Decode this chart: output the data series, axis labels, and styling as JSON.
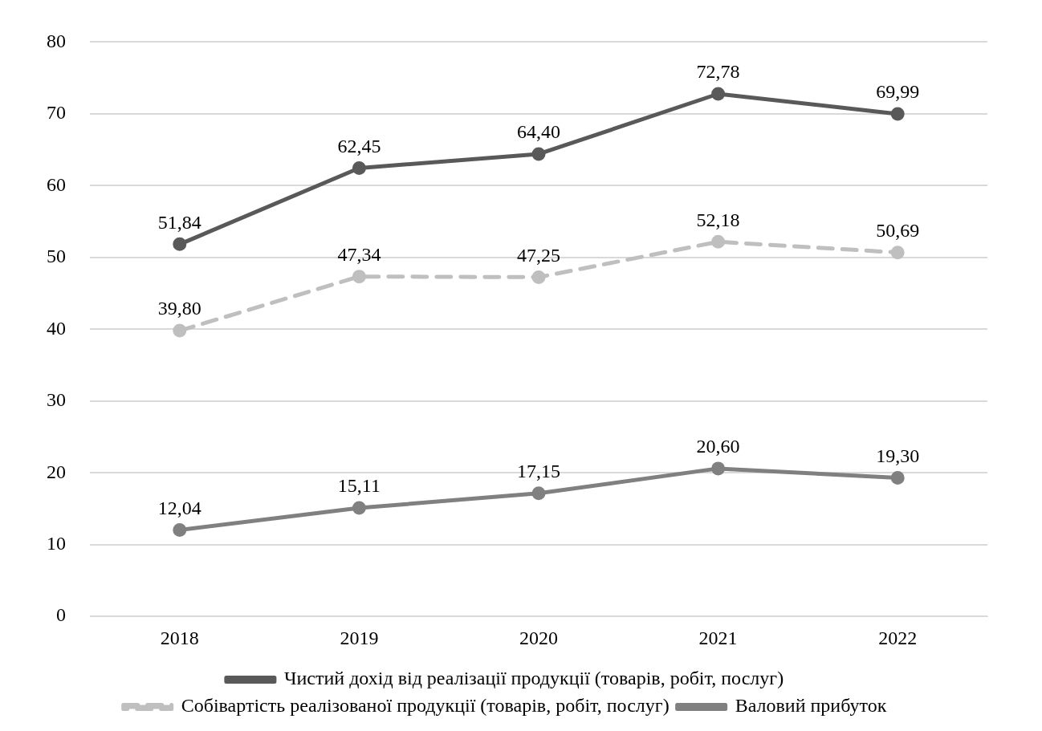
{
  "chart_data": {
    "type": "line",
    "categories": [
      "2018",
      "2019",
      "2020",
      "2021",
      "2022"
    ],
    "series": [
      {
        "name": "Чистий дохід від реалізації продукції (товарів, робіт, послуг)",
        "color": "#595959",
        "values": [
          51.84,
          62.45,
          64.4,
          72.78,
          69.99
        ],
        "value_labels": [
          "51,84",
          "62,45",
          "64,40",
          "72,78",
          "69,99"
        ],
        "line_style": "solid"
      },
      {
        "name": "Собівартість реалізованої продукції (товарів, робіт, послуг)",
        "color": "#bfbfbf",
        "values": [
          39.8,
          47.34,
          47.25,
          52.18,
          50.69
        ],
        "value_labels": [
          "39,80",
          "47,34",
          "47,25",
          "52,18",
          "50,69"
        ],
        "line_style": "dashed"
      },
      {
        "name": "Валовий прибуток",
        "color": "#808080",
        "values": [
          12.04,
          15.11,
          17.15,
          20.6,
          19.3
        ],
        "value_labels": [
          "12,04",
          "15,11",
          "17,15",
          "20,60",
          "19,30"
        ],
        "line_style": "solid"
      }
    ],
    "ylim": [
      0,
      80
    ],
    "yticks": [
      0,
      10,
      20,
      30,
      40,
      50,
      60,
      70,
      80
    ],
    "grid": "y",
    "legend": "bottom",
    "marker": "circle"
  }
}
